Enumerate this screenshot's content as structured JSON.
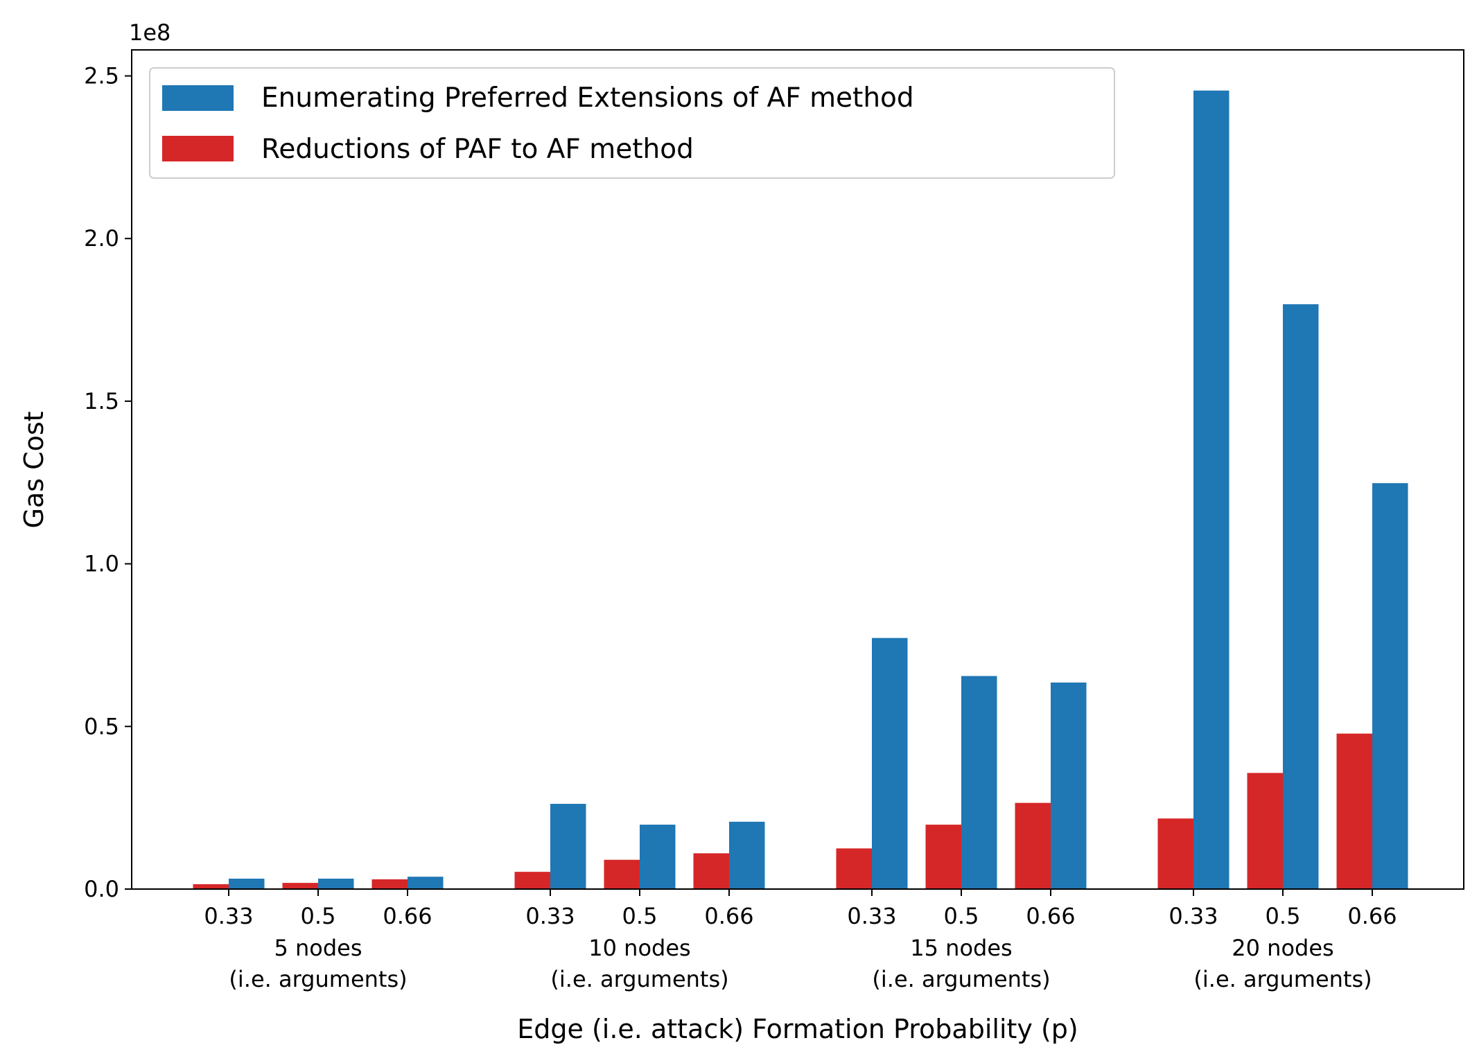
{
  "chart_data": {
    "type": "bar",
    "title": "",
    "xlabel": "Edge (i.e. attack) Formation Probability (p)",
    "ylabel": "Gas Cost",
    "y_offset_label": "1e8",
    "ylim": [
      0,
      2.58
    ],
    "y_ticks": [
      0.0,
      0.5,
      1.0,
      1.5,
      2.0,
      2.5
    ],
    "y_tick_labels": [
      "0.0",
      "0.5",
      "1.0",
      "1.5",
      "2.0",
      "2.5"
    ],
    "groups": [
      {
        "label_line1": "5 nodes",
        "label_line2": "(i.e. arguments)"
      },
      {
        "label_line1": "10 nodes",
        "label_line2": "(i.e. arguments)"
      },
      {
        "label_line1": "15 nodes",
        "label_line2": "(i.e. arguments)"
      },
      {
        "label_line1": "20 nodes",
        "label_line2": "(i.e. arguments)"
      }
    ],
    "categories": [
      "0.33",
      "0.5",
      "0.66",
      "0.33",
      "0.5",
      "0.66",
      "0.33",
      "0.5",
      "0.66",
      "0.33",
      "0.5",
      "0.66"
    ],
    "series": [
      {
        "name": "Enumerating Preferred Extensions of AF method",
        "color": "#1f77b4",
        "values": [
          0.032,
          0.032,
          0.038,
          0.262,
          0.198,
          0.207,
          0.772,
          0.655,
          0.635,
          2.455,
          1.798,
          1.248
        ]
      },
      {
        "name": "Reductions of PAF to AF method",
        "color": "#d62728",
        "values": [
          0.015,
          0.019,
          0.03,
          0.053,
          0.09,
          0.11,
          0.125,
          0.198,
          0.265,
          0.217,
          0.357,
          0.478
        ]
      }
    ],
    "legend_position": "top-left",
    "grid": false
  }
}
